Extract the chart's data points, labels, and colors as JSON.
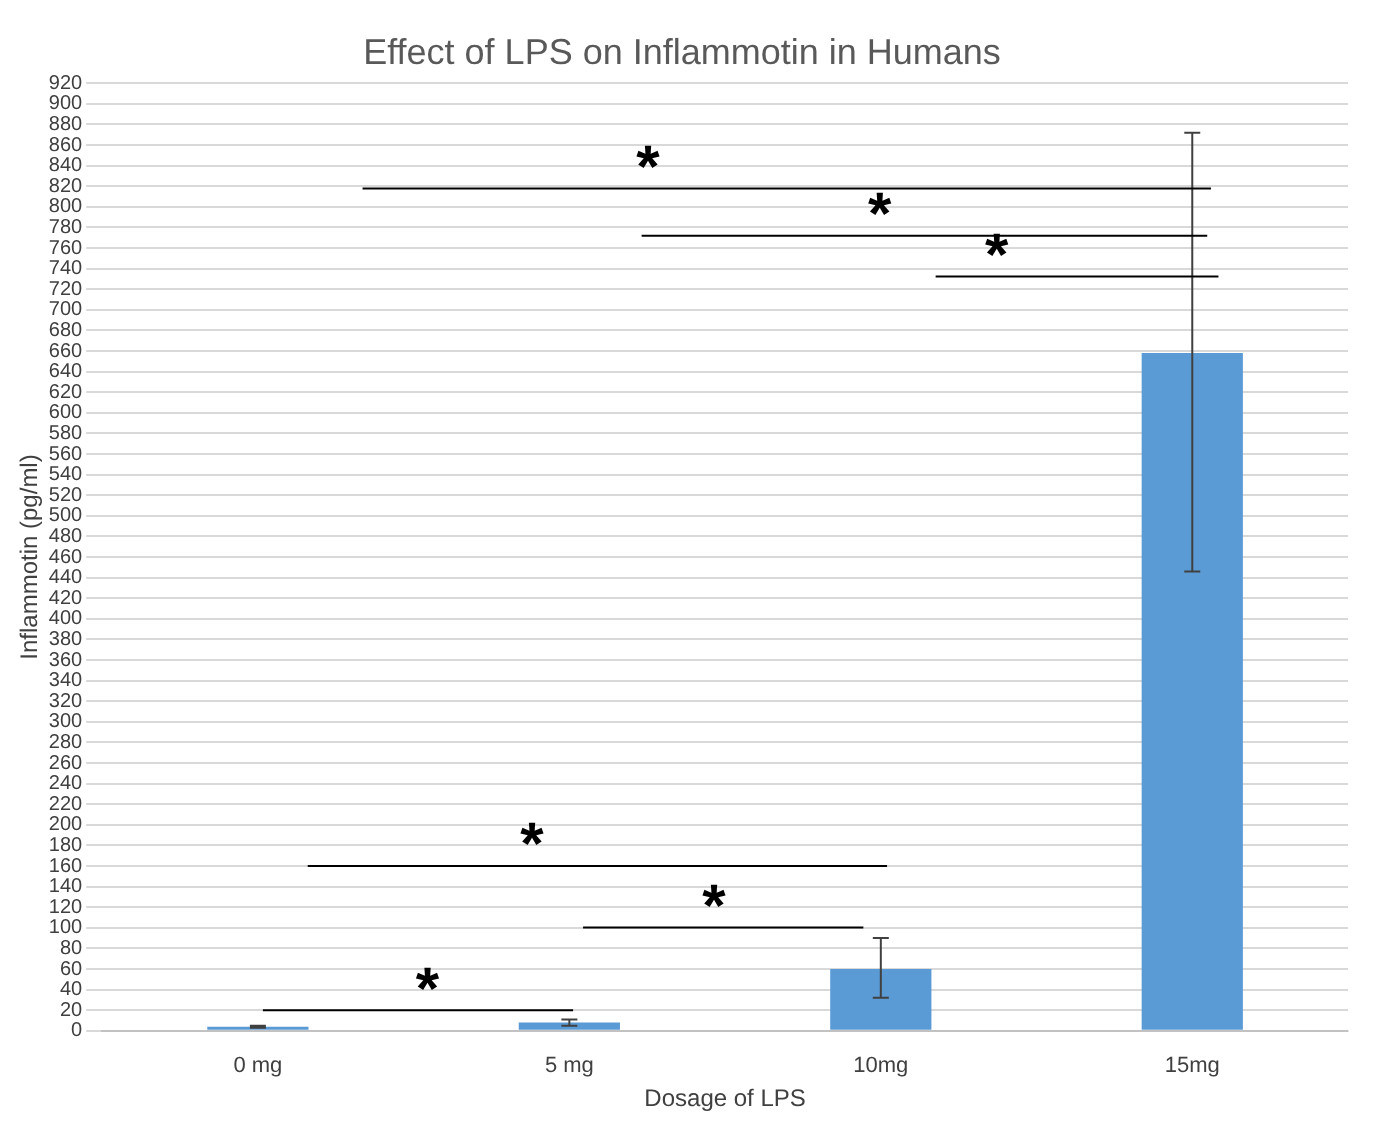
{
  "chart_data": {
    "type": "bar",
    "title": "Effect of LPS on Inflammotin in Humans",
    "xlabel": "Dosage of LPS",
    "ylabel": "Inflammotin (pg/ml)",
    "categories": [
      "0 mg",
      "5 mg",
      "10mg",
      "15mg"
    ],
    "values": [
      4,
      8,
      60,
      658
    ],
    "color": "#5b9bd5",
    "errors": [
      1,
      3,
      [
        32,
        90
      ],
      [
        446,
        872
      ]
    ],
    "ylim": [
      0,
      920
    ],
    "yticks": [
      0,
      20,
      40,
      60,
      80,
      100,
      120,
      140,
      160,
      180,
      200,
      220,
      240,
      260,
      280,
      300,
      320,
      340,
      360,
      380,
      400,
      420,
      440,
      460,
      480,
      500,
      520,
      540,
      560,
      580,
      600,
      620,
      640,
      660,
      680,
      700,
      720,
      740,
      760,
      780,
      800,
      820,
      840,
      860,
      880,
      900,
      920
    ],
    "grid": "y",
    "legend": false,
    "annotations": [
      "*",
      "*",
      "*",
      "*",
      "*",
      "*"
    ]
  }
}
